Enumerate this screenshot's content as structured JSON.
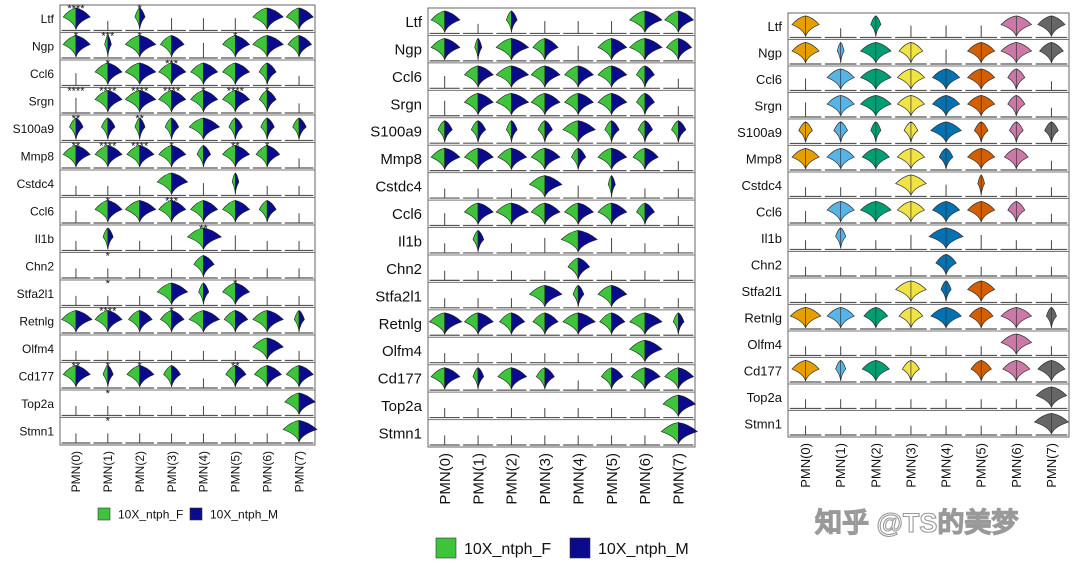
{
  "chart_data": {
    "type": "violin",
    "genes": [
      "Ltf",
      "Ngp",
      "Ccl6",
      "Srgn",
      "S100a9",
      "Mmp8",
      "Cstdc4",
      "Ccl6",
      "Il1b",
      "Chn2",
      "Stfa2l1",
      "Retnlg",
      "Olfm4",
      "Cd177",
      "Top2a",
      "Stmn1"
    ],
    "clusters": [
      "PMN(0)",
      "PMN(1)",
      "PMN(2)",
      "PMN(3)",
      "PMN(4)",
      "PMN(5)",
      "PMN(6)",
      "PMN(7)"
    ],
    "expression_level": [
      [
        0.8,
        0.0,
        0.3,
        0.05,
        0.05,
        0.05,
        0.9,
        0.8
      ],
      [
        0.8,
        0.2,
        0.9,
        0.7,
        0.1,
        0.8,
        0.9,
        0.7
      ],
      [
        0.05,
        0.8,
        0.9,
        0.8,
        0.8,
        0.8,
        0.5,
        0.0
      ],
      [
        0.1,
        0.8,
        0.9,
        0.8,
        0.8,
        0.8,
        0.5,
        0.0
      ],
      [
        0.4,
        0.4,
        0.3,
        0.4,
        0.9,
        0.4,
        0.4,
        0.4
      ],
      [
        0.8,
        0.8,
        0.8,
        0.8,
        0.4,
        0.8,
        0.7,
        0.0
      ],
      [
        0.0,
        0.0,
        0.0,
        0.9,
        0.05,
        0.2,
        0.0,
        0.0
      ],
      [
        0.05,
        0.8,
        0.9,
        0.8,
        0.8,
        0.8,
        0.5,
        0.0
      ],
      [
        0.0,
        0.3,
        0.0,
        0.1,
        1.0,
        0.1,
        0.0,
        0.0
      ],
      [
        0.0,
        0.0,
        0.0,
        0.0,
        0.6,
        0.0,
        0.0,
        0.0
      ],
      [
        0.0,
        0.0,
        0.0,
        0.9,
        0.3,
        0.8,
        0.0,
        0.0
      ],
      [
        0.9,
        0.8,
        0.7,
        0.7,
        0.9,
        0.7,
        0.9,
        0.3
      ],
      [
        0.0,
        0.0,
        0.0,
        0.0,
        0.0,
        0.0,
        0.9,
        0.0
      ],
      [
        0.8,
        0.3,
        0.8,
        0.5,
        0.0,
        0.6,
        0.8,
        0.8
      ],
      [
        0.0,
        0.0,
        0.0,
        0.0,
        0.0,
        0.0,
        0.0,
        0.9
      ],
      [
        0.0,
        0.0,
        0.0,
        0.0,
        0.0,
        0.0,
        0.0,
        1.0
      ]
    ],
    "panels": [
      {
        "name": "split-violin-with-significance",
        "mode": "split",
        "significance": [
          [
            "****",
            "",
            "*",
            "",
            "",
            "",
            "",
            ""
          ],
          [
            "*",
            "***",
            "*",
            "",
            "",
            "*",
            "",
            ""
          ],
          [
            "",
            "*",
            "",
            "***",
            "",
            "",
            "",
            ""
          ],
          [
            "****",
            "****",
            "****",
            "****",
            "*",
            "****",
            "*",
            ""
          ],
          [
            "**",
            "",
            "**",
            "",
            "",
            "",
            "",
            ""
          ],
          [
            "**",
            "****",
            "****",
            "*",
            "",
            "**",
            "*",
            ""
          ],
          [
            "",
            "",
            "",
            "",
            "",
            "",
            "",
            ""
          ],
          [
            "",
            "*",
            "",
            "***",
            "",
            "",
            "",
            ""
          ],
          [
            "",
            "",
            "",
            "",
            "**",
            "",
            "",
            ""
          ],
          [
            "",
            "*",
            "",
            "",
            "",
            "",
            "",
            ""
          ],
          [
            "",
            "*",
            "",
            "",
            "",
            "*",
            "",
            ""
          ],
          [
            "",
            "****",
            "",
            "*",
            "",
            "",
            "",
            ""
          ],
          [
            "",
            "",
            "",
            "",
            "",
            "",
            "",
            ""
          ],
          [
            "**",
            "*",
            "*",
            "",
            "",
            "**",
            "",
            ""
          ],
          [
            "",
            "*",
            "",
            "",
            "",
            "",
            "",
            ""
          ],
          [
            "",
            "*",
            "",
            "",
            "",
            "",
            "",
            ""
          ]
        ],
        "legend": [
          {
            "label": "10X_ntph_F",
            "color": "#3ec43a"
          },
          {
            "label": "10X_ntph_M",
            "color": "#0a0a8c"
          }
        ]
      },
      {
        "name": "split-violin",
        "mode": "split",
        "legend": [
          {
            "label": "10X_ntph_F",
            "color": "#3ec43a"
          },
          {
            "label": "10X_ntph_M",
            "color": "#0a0a8c"
          }
        ]
      },
      {
        "name": "cluster-violin",
        "mode": "cluster",
        "cluster_colors": [
          "#E69F00",
          "#56B4E9",
          "#009E73",
          "#F0E442",
          "#0072B2",
          "#D55E00",
          "#CC79A7",
          "#666666"
        ]
      }
    ]
  },
  "watermark": "知乎 @TS的美梦"
}
